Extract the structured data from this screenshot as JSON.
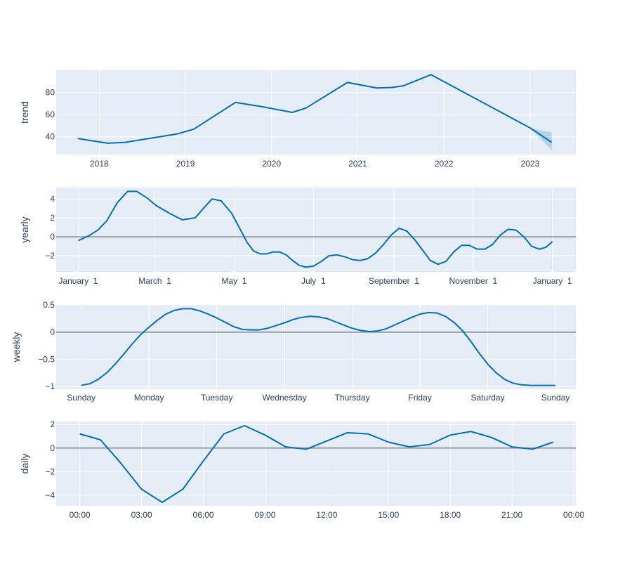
{
  "colors": {
    "line": "#0072b2",
    "plot_bg": "#e5ecf6",
    "grid": "#ffffff",
    "zero_line": "#9aa0a6",
    "text": "#2a3f5f"
  },
  "chart_data": [
    {
      "id": "trend",
      "type": "line",
      "ylabel": "trend",
      "xticks": [
        "2018",
        "2019",
        "2020",
        "2021",
        "2022",
        "2023"
      ],
      "xtick_values": [
        2018.0,
        2019.0,
        2020.0,
        2021.0,
        2022.0,
        2023.0
      ],
      "yticks": [
        "40",
        "60",
        "80"
      ],
      "ytick_values": [
        40,
        60,
        80
      ],
      "xlim": [
        2017.5,
        2023.53
      ],
      "ylim": [
        24,
        100
      ],
      "grid": true,
      "series": [
        {
          "x": [
            2017.75,
            2018.1,
            2018.3,
            2018.9,
            2019.1,
            2019.58,
            2019.9,
            2020.24,
            2020.4,
            2020.88,
            2021.22,
            2021.4,
            2021.53,
            2021.85,
            2023.0,
            2023.25
          ],
          "y": [
            38.5,
            34.2,
            35,
            42.5,
            47,
            71,
            67,
            62,
            66,
            89,
            84,
            84.5,
            86,
            96,
            48,
            35
          ]
        }
      ],
      "band": {
        "x": [
          2023.0,
          2023.1,
          2023.25
        ],
        "upper": [
          48.2,
          46,
          44
        ],
        "lower": [
          47.8,
          40,
          28
        ]
      }
    },
    {
      "id": "yearly",
      "type": "line",
      "ylabel": "yearly",
      "xticks": [
        "January  1",
        "March  1",
        "May  1",
        "July  1",
        "September  1",
        "November  1",
        "January  1"
      ],
      "xtick_values": [
        0,
        59,
        120,
        181,
        243,
        304,
        365
      ],
      "yticks": [
        "−2",
        "0",
        "2",
        "4"
      ],
      "ytick_values": [
        -2,
        0,
        2,
        4
      ],
      "xlim": [
        -17,
        383
      ],
      "ylim": [
        -3.7,
        5.2
      ],
      "grid": true,
      "zero_line": true,
      "series": [
        {
          "x": [
            0,
            8,
            15,
            22,
            30,
            38,
            45,
            53,
            60,
            70,
            80,
            90,
            97,
            103,
            110,
            118,
            125,
            130,
            135,
            140,
            145,
            150,
            155,
            160,
            165,
            170,
            175,
            181,
            187,
            193,
            199,
            205,
            211,
            217,
            223,
            229,
            235,
            241,
            247,
            253,
            259,
            265,
            271,
            277,
            283,
            289,
            295,
            301,
            307,
            313,
            319,
            325,
            331,
            337,
            343,
            349,
            355,
            360,
            365
          ],
          "y": [
            -0.4,
            0.1,
            0.7,
            1.7,
            3.6,
            4.8,
            4.8,
            4.1,
            3.3,
            2.5,
            1.8,
            2.0,
            3.1,
            4.0,
            3.8,
            2.5,
            0.7,
            -0.6,
            -1.5,
            -1.8,
            -1.8,
            -1.6,
            -1.6,
            -1.9,
            -2.5,
            -3.0,
            -3.2,
            -3.1,
            -2.6,
            -2.0,
            -1.9,
            -2.1,
            -2.4,
            -2.5,
            -2.3,
            -1.7,
            -0.8,
            0.2,
            0.9,
            0.6,
            -0.3,
            -1.4,
            -2.5,
            -2.9,
            -2.6,
            -1.6,
            -0.9,
            -0.9,
            -1.3,
            -1.3,
            -0.8,
            0.2,
            0.8,
            0.7,
            0.0,
            -1.0,
            -1.3,
            -1.1,
            -0.5
          ]
        }
      ]
    },
    {
      "id": "weekly",
      "type": "line",
      "ylabel": "weekly",
      "xticks": [
        "Sunday",
        "Monday",
        "Tuesday",
        "Wednesday",
        "Thursday",
        "Friday",
        "Saturday",
        "Sunday"
      ],
      "xtick_values": [
        0,
        1,
        2,
        3,
        4,
        5,
        6,
        7
      ],
      "yticks": [
        "−1",
        "−0.5",
        "0",
        "0.5"
      ],
      "ytick_values": [
        -1,
        -0.5,
        0,
        0.5
      ],
      "xlim": [
        -0.37,
        7.3
      ],
      "ylim": [
        -1.05,
        0.5
      ],
      "grid": true,
      "zero_line": true,
      "series": [
        {
          "x": [
            0,
            0.125,
            0.25,
            0.375,
            0.5,
            0.625,
            0.75,
            0.875,
            1.0,
            1.125,
            1.25,
            1.375,
            1.5,
            1.625,
            1.75,
            1.875,
            2.0,
            2.125,
            2.25,
            2.375,
            2.5,
            2.625,
            2.75,
            2.875,
            3.0,
            3.125,
            3.25,
            3.375,
            3.5,
            3.625,
            3.75,
            3.875,
            4.0,
            4.125,
            4.25,
            4.375,
            4.5,
            4.625,
            4.75,
            4.875,
            5.0,
            5.125,
            5.25,
            5.375,
            5.5,
            5.625,
            5.75,
            5.875,
            6.0,
            6.125,
            6.25,
            6.375,
            6.5,
            6.625,
            6.75,
            6.875,
            7.0
          ],
          "y": [
            -0.98,
            -0.95,
            -0.87,
            -0.75,
            -0.59,
            -0.41,
            -0.22,
            -0.05,
            0.09,
            0.22,
            0.33,
            0.4,
            0.43,
            0.43,
            0.39,
            0.33,
            0.26,
            0.18,
            0.1,
            0.05,
            0.04,
            0.04,
            0.07,
            0.12,
            0.17,
            0.23,
            0.27,
            0.29,
            0.28,
            0.25,
            0.19,
            0.13,
            0.07,
            0.03,
            0.01,
            0.02,
            0.06,
            0.13,
            0.2,
            0.27,
            0.33,
            0.36,
            0.35,
            0.29,
            0.18,
            0.03,
            -0.17,
            -0.39,
            -0.59,
            -0.75,
            -0.87,
            -0.94,
            -0.97,
            -0.98,
            -0.98,
            -0.98,
            -0.98
          ]
        }
      ]
    },
    {
      "id": "daily",
      "type": "line",
      "ylabel": "daily",
      "xticks": [
        "00:00",
        "03:00",
        "06:00",
        "09:00",
        "12:00",
        "15:00",
        "18:00",
        "21:00",
        "00:00"
      ],
      "xtick_values": [
        0,
        3,
        6,
        9,
        12,
        15,
        18,
        21,
        24
      ],
      "yticks": [
        "−4",
        "−2",
        "0",
        "2"
      ],
      "ytick_values": [
        -4,
        -2,
        0,
        2
      ],
      "xlim": [
        -1.15,
        24.1
      ],
      "ylim": [
        -4.9,
        2.25
      ],
      "grid": true,
      "zero_line": true,
      "series": [
        {
          "x": [
            0,
            1,
            2,
            3,
            4,
            5,
            6,
            7,
            8,
            9,
            10,
            11,
            12,
            13,
            14,
            15,
            16,
            17,
            18,
            19,
            20,
            21,
            22,
            23
          ],
          "y": [
            1.2,
            0.7,
            -1.3,
            -3.5,
            -4.6,
            -3.5,
            -1.1,
            1.2,
            1.9,
            1.1,
            0.1,
            -0.1,
            0.6,
            1.3,
            1.2,
            0.5,
            0.1,
            0.3,
            1.1,
            1.4,
            0.9,
            0.1,
            -0.1,
            0.5
          ]
        }
      ]
    }
  ]
}
